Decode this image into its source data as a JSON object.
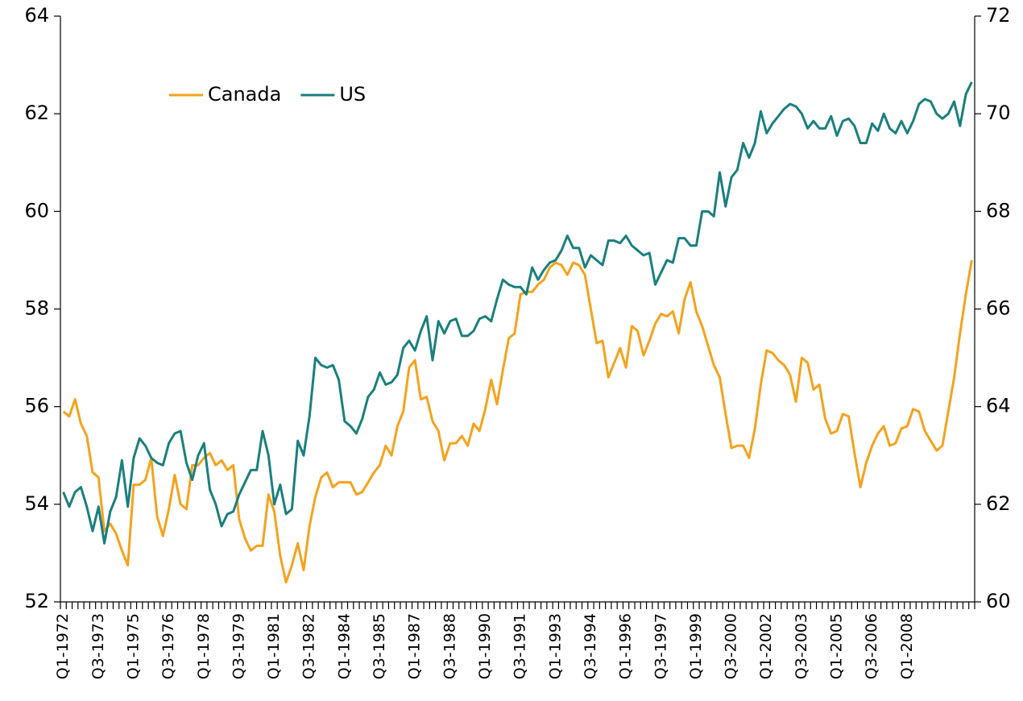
{
  "chart_data": {
    "type": "line",
    "categories": [
      "Q1-1972",
      null,
      null,
      null,
      null,
      null,
      "Q3-1973",
      null,
      null,
      null,
      null,
      null,
      "Q1-1975",
      null,
      null,
      null,
      null,
      null,
      "Q3-1976",
      null,
      null,
      null,
      null,
      null,
      "Q1-1978",
      null,
      null,
      null,
      null,
      null,
      "Q3-1979",
      null,
      null,
      null,
      null,
      null,
      "Q1-1981",
      null,
      null,
      null,
      null,
      null,
      "Q3-1982",
      null,
      null,
      null,
      null,
      null,
      "Q1-1984",
      null,
      null,
      null,
      null,
      null,
      "Q3-1985",
      null,
      null,
      null,
      null,
      null,
      "Q1-1987",
      null,
      null,
      null,
      null,
      null,
      "Q3-1988",
      null,
      null,
      null,
      null,
      null,
      "Q1-1990",
      null,
      null,
      null,
      null,
      null,
      "Q3-1991",
      null,
      null,
      null,
      null,
      null,
      "Q1-1993",
      null,
      null,
      null,
      null,
      null,
      "Q3-1994",
      null,
      null,
      null,
      null,
      null,
      "Q1-1996",
      null,
      null,
      null,
      null,
      null,
      "Q3-1997",
      null,
      null,
      null,
      null,
      null,
      "Q1-1999",
      null,
      null,
      null,
      null,
      null,
      "Q3-2000",
      null,
      null,
      null,
      null,
      null,
      "Q1-2002",
      null,
      null,
      null,
      null,
      null,
      "Q3-2003",
      null,
      null,
      null,
      null,
      null,
      "Q1-2005",
      null,
      null,
      null,
      null,
      null,
      "Q3-2006",
      null,
      null,
      null,
      null,
      null,
      "Q1-2008",
      null,
      null,
      null,
      null,
      null,
      null,
      null,
      null,
      null,
      null,
      null
    ],
    "series": [
      {
        "name": "Canada",
        "color": "#f5a21c",
        "values": [
          55.9,
          55.8,
          56.15,
          55.65,
          55.4,
          54.65,
          54.55,
          53.45,
          53.6,
          53.4,
          53.05,
          52.75,
          54.4,
          54.4,
          54.5,
          54.95,
          53.75,
          53.35,
          53.9,
          54.6,
          54.0,
          53.9,
          54.8,
          54.8,
          54.95,
          55.05,
          54.8,
          54.9,
          54.7,
          54.8,
          53.7,
          53.3,
          53.05,
          53.15,
          53.15,
          54.2,
          53.85,
          52.95,
          52.4,
          52.75,
          53.2,
          52.65,
          53.55,
          54.15,
          54.55,
          54.65,
          54.35,
          54.45,
          54.45,
          54.45,
          54.2,
          54.25,
          54.45,
          54.65,
          54.8,
          55.2,
          55.0,
          55.6,
          55.9,
          56.8,
          56.95,
          56.15,
          56.2,
          55.7,
          55.5,
          54.9,
          55.25,
          55.25,
          55.4,
          55.2,
          55.65,
          55.5,
          55.95,
          56.55,
          56.05,
          56.75,
          57.4,
          57.5,
          58.3,
          58.35,
          58.35,
          58.5,
          58.6,
          58.85,
          58.95,
          58.9,
          58.7,
          58.95,
          58.9,
          58.7,
          58.0,
          57.3,
          57.35,
          56.6,
          56.9,
          57.2,
          56.8,
          57.65,
          57.55,
          57.05,
          57.35,
          57.7,
          57.9,
          57.85,
          57.95,
          57.5,
          58.2,
          58.55,
          57.95,
          57.65,
          57.25,
          56.85,
          56.6,
          55.85,
          55.15,
          55.2,
          55.2,
          54.95,
          55.55,
          56.45,
          57.15,
          57.1,
          56.95,
          56.85,
          56.65,
          56.1,
          57.0,
          56.9,
          56.35,
          56.45,
          55.75,
          55.45,
          55.5,
          55.85,
          55.8,
          55.05,
          54.35,
          54.85,
          55.2,
          55.45,
          55.6,
          55.2,
          55.25,
          55.55,
          55.6,
          55.95,
          55.9,
          55.5,
          55.3,
          55.1,
          55.2,
          55.9,
          56.6,
          57.5,
          58.3,
          59.0
        ]
      },
      {
        "name": "US",
        "color": "#1a7f7f",
        "axis": "y2",
        "values": [
          62.25,
          61.95,
          62.25,
          62.35,
          61.95,
          61.45,
          61.95,
          61.2,
          61.85,
          62.15,
          62.9,
          61.95,
          62.95,
          63.35,
          63.2,
          62.95,
          62.85,
          62.8,
          63.25,
          63.45,
          63.5,
          62.85,
          62.5,
          63.0,
          63.25,
          62.3,
          62.0,
          61.55,
          61.8,
          61.85,
          62.2,
          62.45,
          62.7,
          62.7,
          63.5,
          63.0,
          62.0,
          62.4,
          61.8,
          61.9,
          63.3,
          63.0,
          63.8,
          65.0,
          64.85,
          64.8,
          64.85,
          64.55,
          63.7,
          63.6,
          63.45,
          63.75,
          64.2,
          64.35,
          64.7,
          64.45,
          64.5,
          64.65,
          65.2,
          65.35,
          65.15,
          65.55,
          65.85,
          64.95,
          65.75,
          65.5,
          65.75,
          65.8,
          65.45,
          65.45,
          65.55,
          65.8,
          65.85,
          65.75,
          66.2,
          66.6,
          66.5,
          66.45,
          66.45,
          66.3,
          66.85,
          66.6,
          66.8,
          66.95,
          67.0,
          67.2,
          67.5,
          67.25,
          67.25,
          66.85,
          67.1,
          67.0,
          66.9,
          67.4,
          67.4,
          67.35,
          67.5,
          67.3,
          67.2,
          67.1,
          67.15,
          66.5,
          66.75,
          67.0,
          66.95,
          67.45,
          67.45,
          67.3,
          67.3,
          68.0,
          68.0,
          67.9,
          68.8,
          68.1,
          68.7,
          68.85,
          69.4,
          69.1,
          69.4,
          70.05,
          69.6,
          69.8,
          69.95,
          70.1,
          70.2,
          70.15,
          70.0,
          69.7,
          69.85,
          69.7,
          69.7,
          69.95,
          69.55,
          69.85,
          69.9,
          69.75,
          69.4,
          69.4,
          69.8,
          69.65,
          70.0,
          69.7,
          69.6,
          69.85,
          69.6,
          69.85,
          70.2,
          70.3,
          70.25,
          70.0,
          69.9,
          70.0,
          70.25,
          69.75,
          70.4,
          70.65
        ]
      }
    ],
    "ylim": [
      52,
      64
    ],
    "yticks": [
      52,
      54,
      56,
      58,
      60,
      62,
      64
    ],
    "y2lim": [
      60,
      72
    ],
    "y2ticks": [
      60,
      62,
      64,
      66,
      68,
      70,
      72
    ],
    "grid": false,
    "legend": "upper left"
  }
}
